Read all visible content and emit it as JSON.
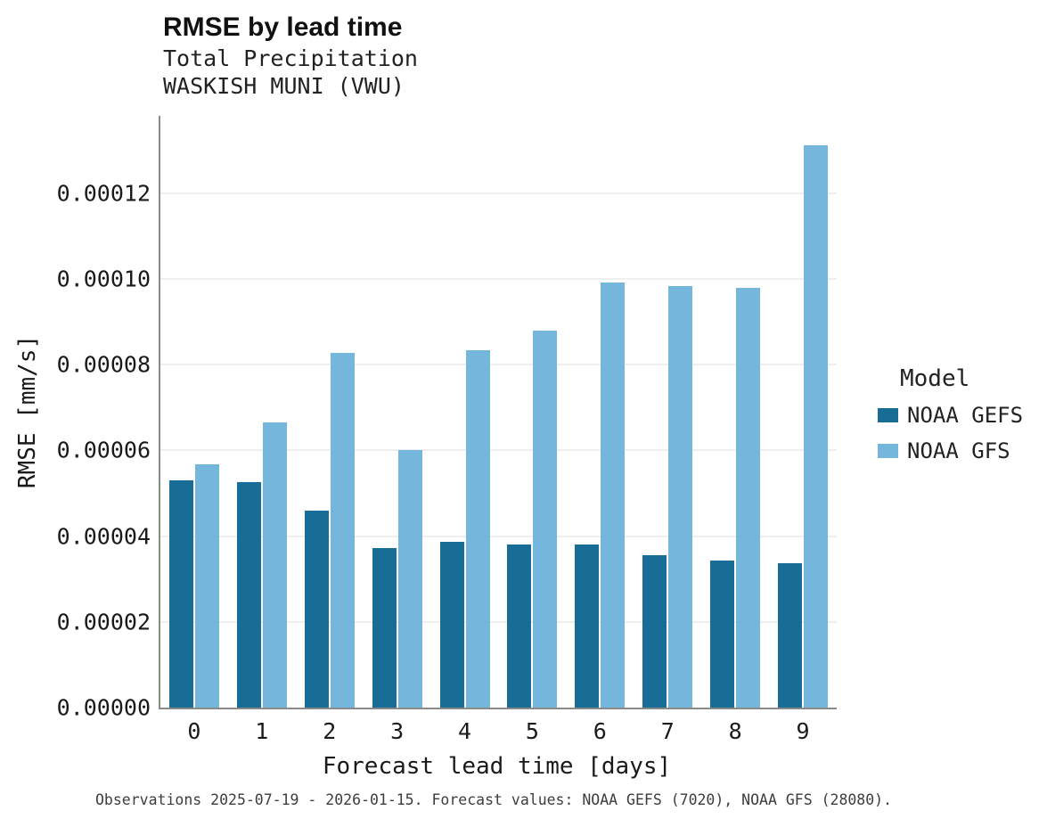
{
  "chart_data": {
    "type": "bar",
    "title": "RMSE by lead time",
    "subtitle_lines": [
      "Total Precipitation",
      "WASKISH MUNI (VWU)"
    ],
    "xlabel": "Forecast lead time [days]",
    "ylabel": "RMSE [mm/s]",
    "categories": [
      "0",
      "1",
      "2",
      "3",
      "4",
      "5",
      "6",
      "7",
      "8",
      "9"
    ],
    "series": [
      {
        "name": "NOAA GEFS",
        "color": "#186d97",
        "values": [
          5.3e-05,
          5.25e-05,
          4.6e-05,
          3.73e-05,
          3.87e-05,
          3.8e-05,
          3.8e-05,
          3.55e-05,
          3.42e-05,
          3.37e-05
        ]
      },
      {
        "name": "NOAA GFS",
        "color": "#74b6dc",
        "values": [
          5.67e-05,
          6.65e-05,
          8.27e-05,
          6e-05,
          8.33e-05,
          8.8e-05,
          9.92e-05,
          9.83e-05,
          9.78e-05,
          0.0001312
        ]
      }
    ],
    "ylim": [
      0,
      0.000138
    ],
    "yticks": [
      {
        "value": 0.0,
        "label": "0.00000"
      },
      {
        "value": 2e-05,
        "label": "0.00002"
      },
      {
        "value": 4e-05,
        "label": "0.00004"
      },
      {
        "value": 6e-05,
        "label": "0.00006"
      },
      {
        "value": 8e-05,
        "label": "0.00008"
      },
      {
        "value": 0.0001,
        "label": "0.00010"
      },
      {
        "value": 0.00012,
        "label": "0.00012"
      }
    ],
    "grid": "horizontal",
    "legend": {
      "title": "Model",
      "position": "right"
    },
    "caption": "Observations 2025-07-19 - 2026-01-15. Forecast values: NOAA GEFS (7020), NOAA GFS (28080)."
  }
}
